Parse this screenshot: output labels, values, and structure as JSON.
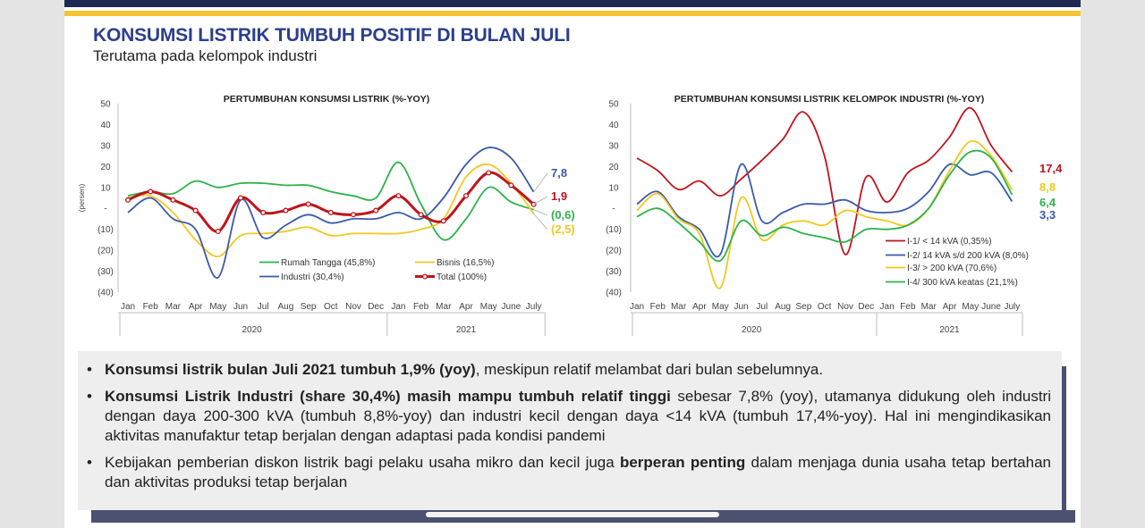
{
  "header": {
    "title": "KONSUMSI LISTRIK TUMBUH POSITIF DI BULAN JULI",
    "subtitle": "Terutama pada kelompok industri"
  },
  "notes": [
    {
      "bold": "Konsumsi listrik bulan Juli 2021 tumbuh 1,9% (yoy)",
      "text": ", meskipun relatif melambat dari bulan sebelumnya."
    },
    {
      "bold": "Konsumsi Listrik Industri (share 30,4%) masih mampu tumbuh relatif tinggi",
      "text": " sebesar 7,8% (yoy), utamanya didukung oleh industri dengan daya 200-300 kVA (tumbuh 8,8%-yoy) dan industri kecil dengan daya <14 kVA (tumbuh 17,4%-yoy). Hal ini mengindikasikan aktivitas manufaktur tetap berjalan dengan adaptasi pada kondisi pandemi"
    },
    {
      "text_a": "Kebijakan pemberian diskon listrik bagi pelaku usaha mikro dan kecil juga ",
      "bold": "berperan penting",
      "text_b": " dalam menjaga dunia usaha tetap bertahan dan aktivitas produksi tetap berjalan"
    }
  ],
  "chart_data": [
    {
      "id": "chart-left",
      "type": "line",
      "title": "PERTUMBUHAN KONSUMSI LISTRIK (%-YOY)",
      "ylabel": "(persen)",
      "ylim": [
        -40,
        50
      ],
      "yticks": [
        "50",
        "40",
        "30",
        "20",
        "10",
        "-",
        "(10)",
        "(20)",
        "(30)",
        "(40)"
      ],
      "categories": [
        "Jan",
        "Feb",
        "Mar",
        "Apr",
        "May",
        "Jun",
        "Jul",
        "Aug",
        "Sep",
        "Oct",
        "Nov",
        "Dec",
        "Jan",
        "Feb",
        "Mar",
        "Apr",
        "May",
        "June",
        "July"
      ],
      "groups": [
        {
          "label": "2020",
          "start": 0,
          "end": 11
        },
        {
          "label": "2021",
          "start": 12,
          "end": 18
        }
      ],
      "series": [
        {
          "name": "Rumah Tangga (45,8%)",
          "color": "#2db34a",
          "values": [
            6,
            8,
            7,
            13,
            10,
            12,
            12,
            11,
            11,
            8,
            6,
            5,
            22,
            2,
            -15,
            -5,
            10,
            3,
            -0.6
          ],
          "end_label": "(0,6)"
        },
        {
          "name": "Bisnis (16,5%)",
          "color": "#f2c81e",
          "values": [
            5,
            6,
            -2,
            -15,
            -23,
            -13,
            -12,
            -11,
            -9,
            -13,
            -12,
            -12,
            -12,
            -10,
            -5,
            15,
            21,
            12,
            -2.5
          ],
          "end_label": "(2,5)"
        },
        {
          "name": "Industri (30,4%)",
          "color": "#3a5ba8",
          "values": [
            -2,
            5,
            -5,
            -10,
            -33,
            4,
            -14,
            -8,
            -3,
            -7,
            -5,
            -5,
            -2,
            -5,
            5,
            21,
            29,
            24,
            7.8
          ],
          "end_label": "7,8"
        },
        {
          "name": "Total (100%)",
          "color": "#c0141c",
          "values": [
            4,
            8,
            4,
            -1,
            -11,
            5,
            -2,
            -1,
            2,
            -2,
            -3,
            -1,
            6,
            -3,
            -6,
            6,
            17,
            11,
            1.9
          ],
          "end_label": "1,9",
          "markers": true
        }
      ]
    },
    {
      "id": "chart-right",
      "type": "line",
      "title": "PERTUMBUHAN KONSUMSI LISTRIK KELOMPOK INDUSTRI (%-YOY)",
      "ylim": [
        -40,
        50
      ],
      "yticks": [
        "50",
        "40",
        "30",
        "20",
        "10",
        "-",
        "(10)",
        "(20)",
        "(30)",
        "(40)"
      ],
      "categories": [
        "Jan",
        "Feb",
        "Mar",
        "Apr",
        "May",
        "Jun",
        "Jul",
        "Aug",
        "Sep",
        "Oct",
        "Nov",
        "Dec",
        "Jan",
        "Feb",
        "Mar",
        "Apr",
        "May",
        "June",
        "July"
      ],
      "groups": [
        {
          "label": "2020",
          "start": 0,
          "end": 11
        },
        {
          "label": "2021",
          "start": 12,
          "end": 18
        }
      ],
      "series": [
        {
          "name": "I-1/ < 14 kVA (0,35%)",
          "color": "#c0141c",
          "values": [
            24,
            18,
            9,
            13,
            6,
            14,
            23,
            33,
            46,
            25,
            -22,
            15,
            3,
            17,
            23,
            34,
            48,
            30,
            17.4
          ],
          "end_label": "17,4"
        },
        {
          "name": "I-2/ 14 kVA s/d 200 kVA (8,0%)",
          "color": "#3a5ba8",
          "values": [
            2,
            8,
            -4,
            -10,
            -22,
            21,
            -6,
            -2,
            2,
            2,
            4,
            -1,
            -2,
            0,
            8,
            21,
            16,
            17,
            3.3
          ],
          "end_label": "3,3"
        },
        {
          "name": "I-3/ > 200 kVA (70,6%)",
          "color": "#f2c81e",
          "values": [
            -1,
            7,
            -5,
            -12,
            -38,
            5,
            -15,
            -8,
            -6,
            -8,
            -1,
            -4,
            -6,
            -8,
            0,
            18,
            32,
            25,
            8.8
          ],
          "end_label": "8,8"
        },
        {
          "name": "I-4/ 300 kVA keatas (21,1%)",
          "color": "#2db34a",
          "values": [
            -4,
            0,
            -7,
            -16,
            -25,
            -6,
            -13,
            -9,
            -12,
            -14,
            -16,
            -10,
            -10,
            -8,
            0,
            16,
            27,
            24,
            6.4
          ],
          "end_label": "6,4"
        }
      ]
    }
  ]
}
